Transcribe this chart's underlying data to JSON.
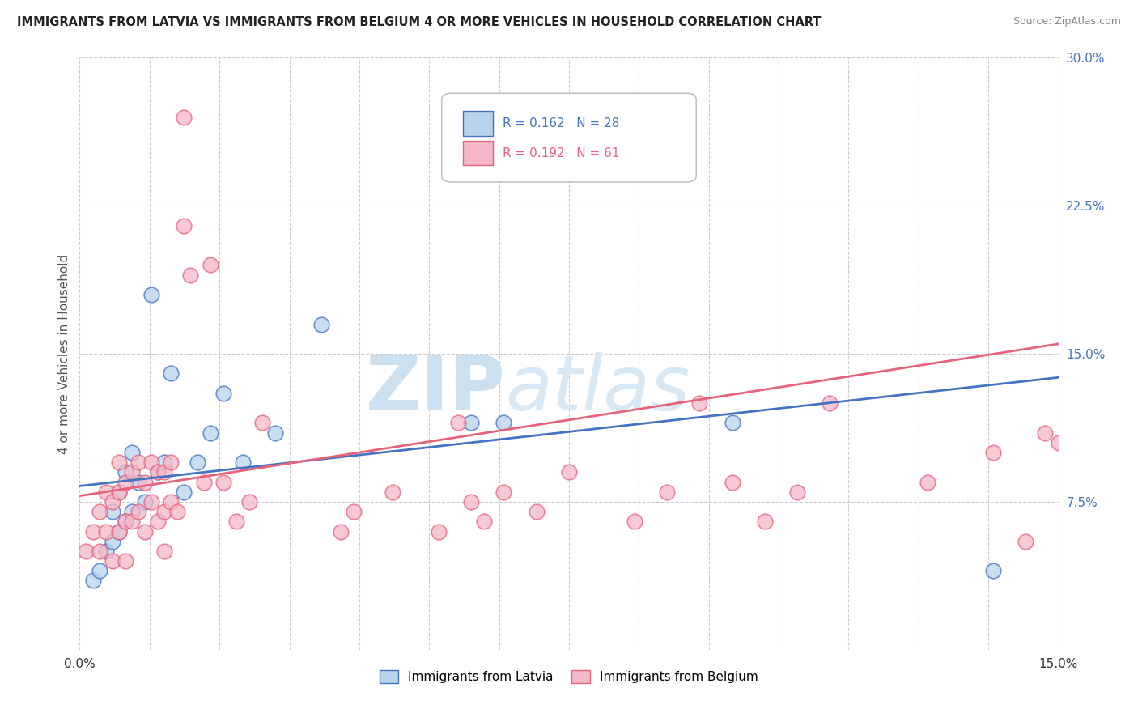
{
  "title": "IMMIGRANTS FROM LATVIA VS IMMIGRANTS FROM BELGIUM 4 OR MORE VEHICLES IN HOUSEHOLD CORRELATION CHART",
  "source": "Source: ZipAtlas.com",
  "ylabel": "4 or more Vehicles in Household",
  "legend_label_blue": "Immigrants from Latvia",
  "legend_label_pink": "Immigrants from Belgium",
  "R_blue": 0.162,
  "N_blue": 28,
  "R_pink": 0.192,
  "N_pink": 61,
  "xmin": 0.0,
  "xmax": 0.15,
  "ymin": 0.0,
  "ymax": 0.3,
  "blue_color": "#b8d4ed",
  "pink_color": "#f5b8c8",
  "blue_line_color": "#4472c4",
  "pink_line_color": "#e8627a",
  "blue_line_y0": 0.083,
  "blue_line_y1": 0.138,
  "pink_line_y0": 0.078,
  "pink_line_y1": 0.155,
  "scatter_blue_x": [
    0.002,
    0.003,
    0.004,
    0.005,
    0.005,
    0.006,
    0.006,
    0.007,
    0.007,
    0.008,
    0.008,
    0.009,
    0.01,
    0.011,
    0.012,
    0.013,
    0.014,
    0.016,
    0.018,
    0.02,
    0.022,
    0.025,
    0.03,
    0.037,
    0.06,
    0.065,
    0.1,
    0.14
  ],
  "scatter_blue_y": [
    0.035,
    0.04,
    0.05,
    0.055,
    0.07,
    0.06,
    0.08,
    0.065,
    0.09,
    0.07,
    0.1,
    0.085,
    0.075,
    0.18,
    0.09,
    0.095,
    0.14,
    0.08,
    0.095,
    0.11,
    0.13,
    0.095,
    0.11,
    0.165,
    0.115,
    0.115,
    0.115,
    0.04
  ],
  "scatter_pink_x": [
    0.001,
    0.002,
    0.003,
    0.003,
    0.004,
    0.004,
    0.005,
    0.005,
    0.006,
    0.006,
    0.006,
    0.007,
    0.007,
    0.007,
    0.008,
    0.008,
    0.009,
    0.009,
    0.01,
    0.01,
    0.011,
    0.011,
    0.012,
    0.012,
    0.013,
    0.013,
    0.013,
    0.014,
    0.014,
    0.015,
    0.016,
    0.016,
    0.017,
    0.019,
    0.02,
    0.022,
    0.024,
    0.026,
    0.028,
    0.04,
    0.042,
    0.048,
    0.055,
    0.058,
    0.06,
    0.062,
    0.065,
    0.07,
    0.075,
    0.085,
    0.09,
    0.095,
    0.1,
    0.105,
    0.11,
    0.115,
    0.13,
    0.14,
    0.145,
    0.148,
    0.15
  ],
  "scatter_pink_y": [
    0.05,
    0.06,
    0.05,
    0.07,
    0.06,
    0.08,
    0.045,
    0.075,
    0.06,
    0.08,
    0.095,
    0.045,
    0.065,
    0.085,
    0.065,
    0.09,
    0.07,
    0.095,
    0.06,
    0.085,
    0.075,
    0.095,
    0.065,
    0.09,
    0.05,
    0.07,
    0.09,
    0.075,
    0.095,
    0.07,
    0.27,
    0.215,
    0.19,
    0.085,
    0.195,
    0.085,
    0.065,
    0.075,
    0.115,
    0.06,
    0.07,
    0.08,
    0.06,
    0.115,
    0.075,
    0.065,
    0.08,
    0.07,
    0.09,
    0.065,
    0.08,
    0.125,
    0.085,
    0.065,
    0.08,
    0.125,
    0.085,
    0.1,
    0.055,
    0.11,
    0.105
  ]
}
